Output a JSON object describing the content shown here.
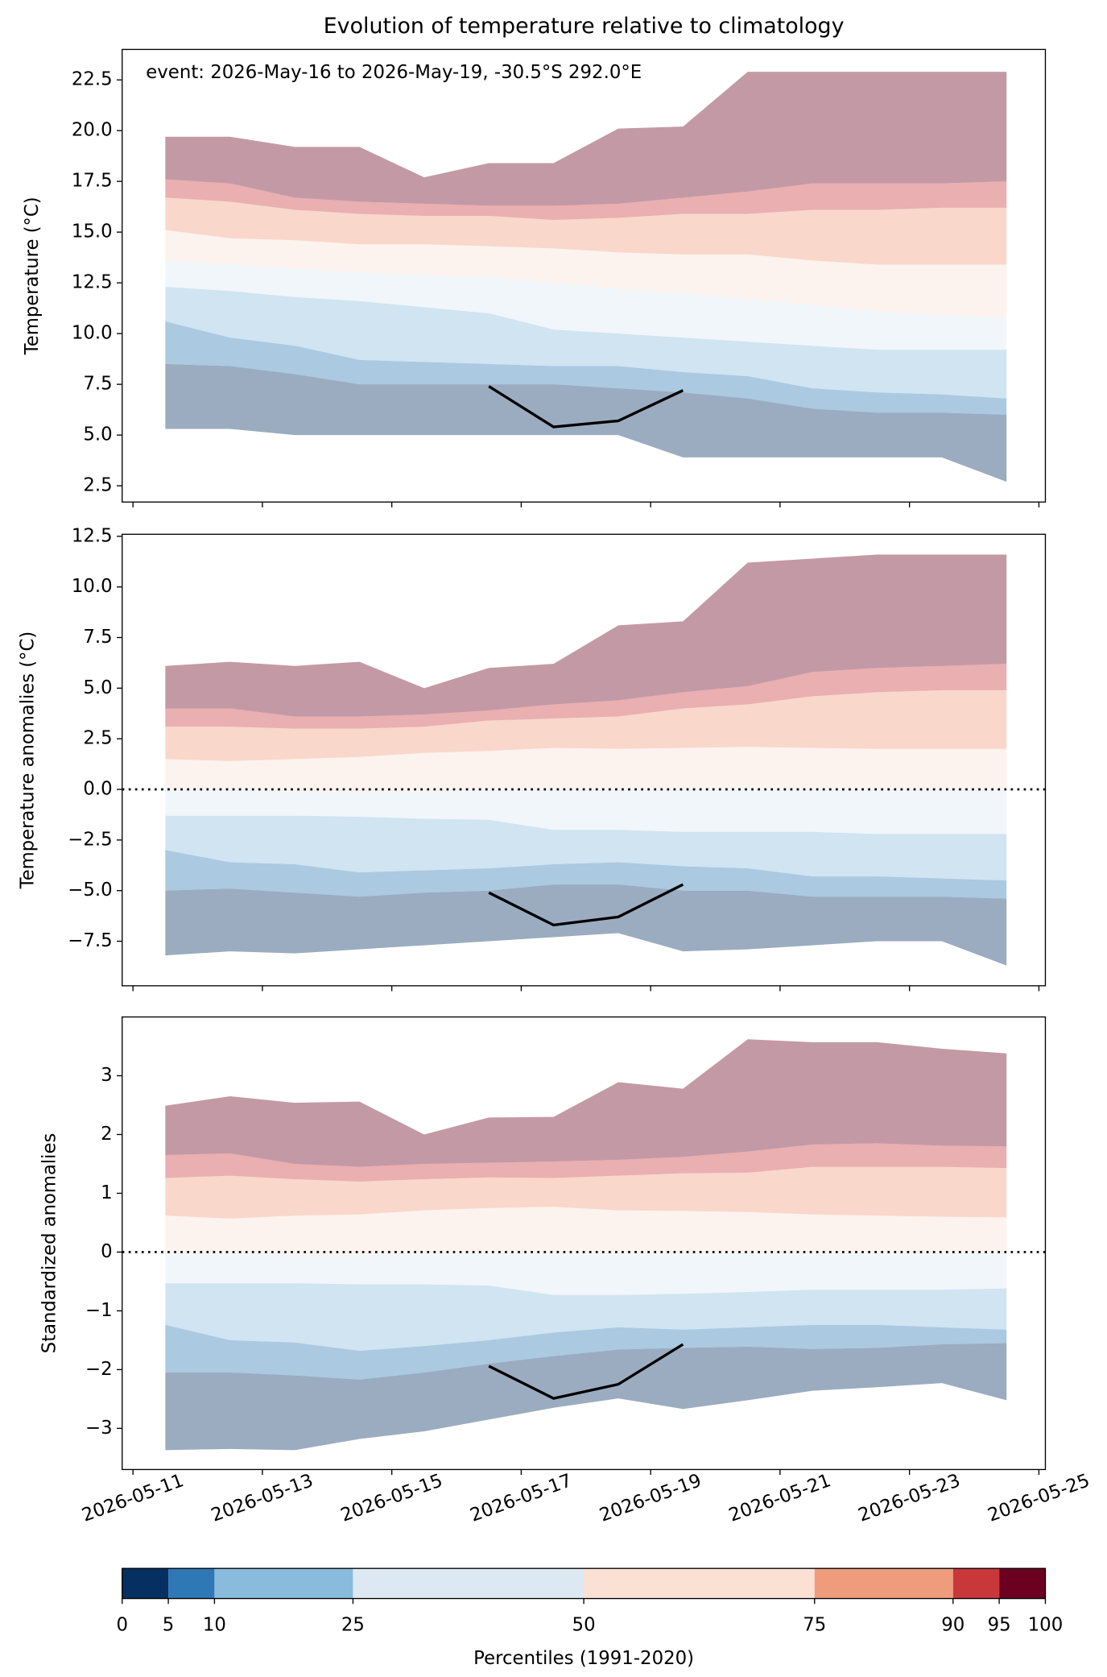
{
  "chart_data": [
    {
      "type": "percentile-bands",
      "title": "Evolution of temperature relative to climatology",
      "annotation": "event: 2026-May-16 to 2026-May-19, -30.5°S 292.0°E",
      "ylabel": "Temperature (°C)",
      "x": [
        "2026-05-11",
        "2026-05-12",
        "2026-05-13",
        "2026-05-14",
        "2026-05-15",
        "2026-05-16",
        "2026-05-17",
        "2026-05-18",
        "2026-05-19",
        "2026-05-20",
        "2026-05-21",
        "2026-05-22",
        "2026-05-23",
        "2026-05-24"
      ],
      "series": [
        {
          "values": [
            5.3,
            5.3,
            5.0,
            5.0,
            5.0,
            5.0,
            5.0,
            5.0,
            3.9,
            3.9,
            3.9,
            3.9,
            3.9,
            2.7
          ]
        },
        {
          "values": [
            8.5,
            8.4,
            8.0,
            7.5,
            7.5,
            7.5,
            7.5,
            7.3,
            7.1,
            6.8,
            6.3,
            6.1,
            6.1,
            6.0
          ]
        },
        {
          "values": [
            10.6,
            9.8,
            9.4,
            8.7,
            8.6,
            8.5,
            8.4,
            8.4,
            8.1,
            7.9,
            7.3,
            7.1,
            7.0,
            6.8
          ]
        },
        {
          "values": [
            12.3,
            12.1,
            11.8,
            11.6,
            11.3,
            11.0,
            10.2,
            10.0,
            9.8,
            9.6,
            9.4,
            9.2,
            9.2,
            9.2
          ]
        },
        {
          "values": [
            13.6,
            13.4,
            13.2,
            13.0,
            12.9,
            12.8,
            12.5,
            12.2,
            12.0,
            11.7,
            11.4,
            11.1,
            10.9,
            10.8
          ]
        },
        {
          "values": [
            15.1,
            14.7,
            14.6,
            14.4,
            14.4,
            14.3,
            14.2,
            14.0,
            13.9,
            13.9,
            13.6,
            13.4,
            13.4,
            13.4
          ]
        },
        {
          "values": [
            16.7,
            16.5,
            16.1,
            15.9,
            15.8,
            15.8,
            15.6,
            15.7,
            15.9,
            15.9,
            16.1,
            16.1,
            16.2,
            16.2
          ]
        },
        {
          "values": [
            17.6,
            17.4,
            16.7,
            16.5,
            16.4,
            16.3,
            16.3,
            16.4,
            16.7,
            17.0,
            17.4,
            17.4,
            17.4,
            17.5
          ]
        },
        {
          "values": [
            19.7,
            19.7,
            19.2,
            19.2,
            17.7,
            18.4,
            18.4,
            20.1,
            20.2,
            22.9,
            22.9,
            22.9,
            22.9,
            22.9
          ]
        }
      ],
      "event": {
        "x": [
          "2026-05-16",
          "2026-05-17",
          "2026-05-18",
          "2026-05-19"
        ],
        "values": [
          7.4,
          5.4,
          5.7,
          7.2
        ]
      },
      "xlim": [
        "2026-05-11",
        "2026-05-25"
      ],
      "xticks": [
        "2026-05-11",
        "2026-05-13",
        "2026-05-15",
        "2026-05-17",
        "2026-05-19",
        "2026-05-21",
        "2026-05-23",
        "2026-05-25"
      ],
      "ylim": [
        1.7,
        24.0
      ],
      "yticks": [
        2.5,
        {
          "value": 5,
          "label": "5.0"
        },
        7.5,
        {
          "value": 10,
          "label": "10.0"
        },
        12.5,
        {
          "value": 15,
          "label": "15.0"
        },
        17.5,
        {
          "value": 20,
          "label": "20.0"
        },
        22.5
      ],
      "zero_line": false
    },
    {
      "type": "percentile-bands",
      "ylabel": "Temperature anomalies (°C)",
      "x": [
        "2026-05-11",
        "2026-05-12",
        "2026-05-13",
        "2026-05-14",
        "2026-05-15",
        "2026-05-16",
        "2026-05-17",
        "2026-05-18",
        "2026-05-19",
        "2026-05-20",
        "2026-05-21",
        "2026-05-22",
        "2026-05-23",
        "2026-05-24"
      ],
      "series": [
        {
          "values": [
            -8.2,
            -8.0,
            -8.1,
            -7.9,
            -7.7,
            -7.5,
            -7.3,
            -7.1,
            -8.0,
            -7.9,
            -7.7,
            -7.5,
            -7.5,
            -8.7
          ]
        },
        {
          "values": [
            -5.0,
            -4.9,
            -5.1,
            -5.3,
            -5.1,
            -5.0,
            -4.7,
            -4.7,
            -5.0,
            -5.0,
            -5.3,
            -5.3,
            -5.3,
            -5.4
          ]
        },
        {
          "values": [
            -3.0,
            -3.6,
            -3.7,
            -4.1,
            -4.0,
            -3.9,
            -3.7,
            -3.6,
            -3.8,
            -3.9,
            -4.3,
            -4.3,
            -4.4,
            -4.5
          ]
        },
        {
          "values": [
            -1.3,
            -1.3,
            -1.3,
            -1.35,
            -1.45,
            -1.5,
            -2.0,
            -2.0,
            -2.1,
            -2.1,
            -2.1,
            -2.2,
            -2.2,
            -2.2
          ]
        },
        {
          "values": [
            0.0,
            0.0,
            -0.1,
            -0.1,
            -0.1,
            0.0,
            0.0,
            0.0,
            0.0,
            0.1,
            0.0,
            0.0,
            0.0,
            0.0
          ]
        },
        {
          "values": [
            1.5,
            1.4,
            1.5,
            1.6,
            1.8,
            1.9,
            2.05,
            2.0,
            2.05,
            2.1,
            2.05,
            2.0,
            2.0,
            2.0
          ]
        },
        {
          "values": [
            3.1,
            3.1,
            3.0,
            3.0,
            3.1,
            3.4,
            3.5,
            3.6,
            4.0,
            4.2,
            4.6,
            4.8,
            4.9,
            4.9
          ]
        },
        {
          "values": [
            4.0,
            4.0,
            3.6,
            3.6,
            3.7,
            3.9,
            4.2,
            4.4,
            4.8,
            5.1,
            5.8,
            6.0,
            6.1,
            6.2
          ]
        },
        {
          "values": [
            6.1,
            6.3,
            6.1,
            6.3,
            5.0,
            6.0,
            6.2,
            8.1,
            8.3,
            11.2,
            11.4,
            11.6,
            11.6,
            11.6
          ]
        }
      ],
      "event": {
        "x": [
          "2026-05-16",
          "2026-05-17",
          "2026-05-18",
          "2026-05-19"
        ],
        "values": [
          -5.1,
          -6.7,
          -6.3,
          -4.7
        ]
      },
      "xlim": [
        "2026-05-11",
        "2026-05-25"
      ],
      "xticks": [
        "2026-05-11",
        "2026-05-13",
        "2026-05-15",
        "2026-05-17",
        "2026-05-19",
        "2026-05-21",
        "2026-05-23",
        "2026-05-25"
      ],
      "ylim": [
        -9.7,
        12.6
      ],
      "yticks": [
        {
          "value": -7.5,
          "label": "−7.5"
        },
        {
          "value": -5,
          "label": "−5.0"
        },
        {
          "value": -2.5,
          "label": "−2.5"
        },
        {
          "value": 0,
          "label": "0.0"
        },
        2.5,
        {
          "value": 5,
          "label": "5.0"
        },
        7.5,
        {
          "value": 10,
          "label": "10.0"
        },
        12.5
      ],
      "zero_line": true
    },
    {
      "type": "percentile-bands",
      "ylabel": "Standardized anomalies",
      "x": [
        "2026-05-11",
        "2026-05-12",
        "2026-05-13",
        "2026-05-14",
        "2026-05-15",
        "2026-05-16",
        "2026-05-17",
        "2026-05-18",
        "2026-05-19",
        "2026-05-20",
        "2026-05-21",
        "2026-05-22",
        "2026-05-23",
        "2026-05-24"
      ],
      "series": [
        {
          "values": [
            -3.37,
            -3.35,
            -3.37,
            -3.18,
            -3.05,
            -2.85,
            -2.65,
            -2.49,
            -2.67,
            -2.52,
            -2.36,
            -2.3,
            -2.23,
            -2.52
          ]
        },
        {
          "values": [
            -2.05,
            -2.05,
            -2.1,
            -2.17,
            -2.05,
            -1.9,
            -1.77,
            -1.66,
            -1.63,
            -1.61,
            -1.65,
            -1.63,
            -1.57,
            -1.55
          ]
        },
        {
          "values": [
            -1.24,
            -1.5,
            -1.54,
            -1.68,
            -1.6,
            -1.5,
            -1.37,
            -1.28,
            -1.32,
            -1.28,
            -1.24,
            -1.24,
            -1.28,
            -1.32
          ]
        },
        {
          "values": [
            -0.53,
            -0.53,
            -0.53,
            -0.55,
            -0.55,
            -0.57,
            -0.73,
            -0.73,
            -0.71,
            -0.68,
            -0.64,
            -0.64,
            -0.64,
            -0.62
          ]
        },
        {
          "values": [
            0.0,
            0.0,
            -0.05,
            -0.05,
            0.0,
            0.0,
            0.0,
            0.0,
            0.0,
            0.0,
            0.0,
            0.0,
            0.0,
            0.0
          ]
        },
        {
          "values": [
            0.62,
            0.57,
            0.62,
            0.64,
            0.71,
            0.75,
            0.77,
            0.71,
            0.7,
            0.68,
            0.64,
            0.62,
            0.6,
            0.59
          ]
        },
        {
          "values": [
            1.26,
            1.3,
            1.24,
            1.2,
            1.24,
            1.27,
            1.26,
            1.3,
            1.34,
            1.35,
            1.45,
            1.45,
            1.45,
            1.43
          ]
        },
        {
          "values": [
            1.65,
            1.68,
            1.5,
            1.45,
            1.5,
            1.52,
            1.54,
            1.57,
            1.62,
            1.71,
            1.83,
            1.85,
            1.81,
            1.8
          ]
        },
        {
          "values": [
            2.49,
            2.65,
            2.54,
            2.56,
            2.0,
            2.29,
            2.3,
            2.89,
            2.78,
            3.62,
            3.57,
            3.57,
            3.46,
            3.38
          ]
        }
      ],
      "event": {
        "x": [
          "2026-05-16",
          "2026-05-17",
          "2026-05-18",
          "2026-05-19"
        ],
        "values": [
          -1.94,
          -2.49,
          -2.25,
          -1.57
        ]
      },
      "xlim": [
        "2026-05-11",
        "2026-05-25"
      ],
      "xticks": [
        "2026-05-11",
        "2026-05-13",
        "2026-05-15",
        "2026-05-17",
        "2026-05-19",
        "2026-05-21",
        "2026-05-23",
        "2026-05-25"
      ],
      "ylim": [
        -3.7,
        4.0
      ],
      "yticks": [
        {
          "value": -3,
          "label": "−3"
        },
        {
          "value": -2,
          "label": "−2"
        },
        {
          "value": -1,
          "label": "−1"
        },
        0,
        1,
        2,
        3
      ],
      "zero_line": true
    }
  ],
  "colorbar": {
    "label": "Percentiles (1991-2020)",
    "ticks": [
      0,
      5,
      10,
      25,
      50,
      75,
      90,
      95,
      100
    ],
    "colors": [
      "#053061",
      "#2e78b5",
      "#89bbdd",
      "#dce9f2",
      "#fbe1d4",
      "#ef9c7c",
      "#c8383b",
      "#6b0021"
    ]
  }
}
